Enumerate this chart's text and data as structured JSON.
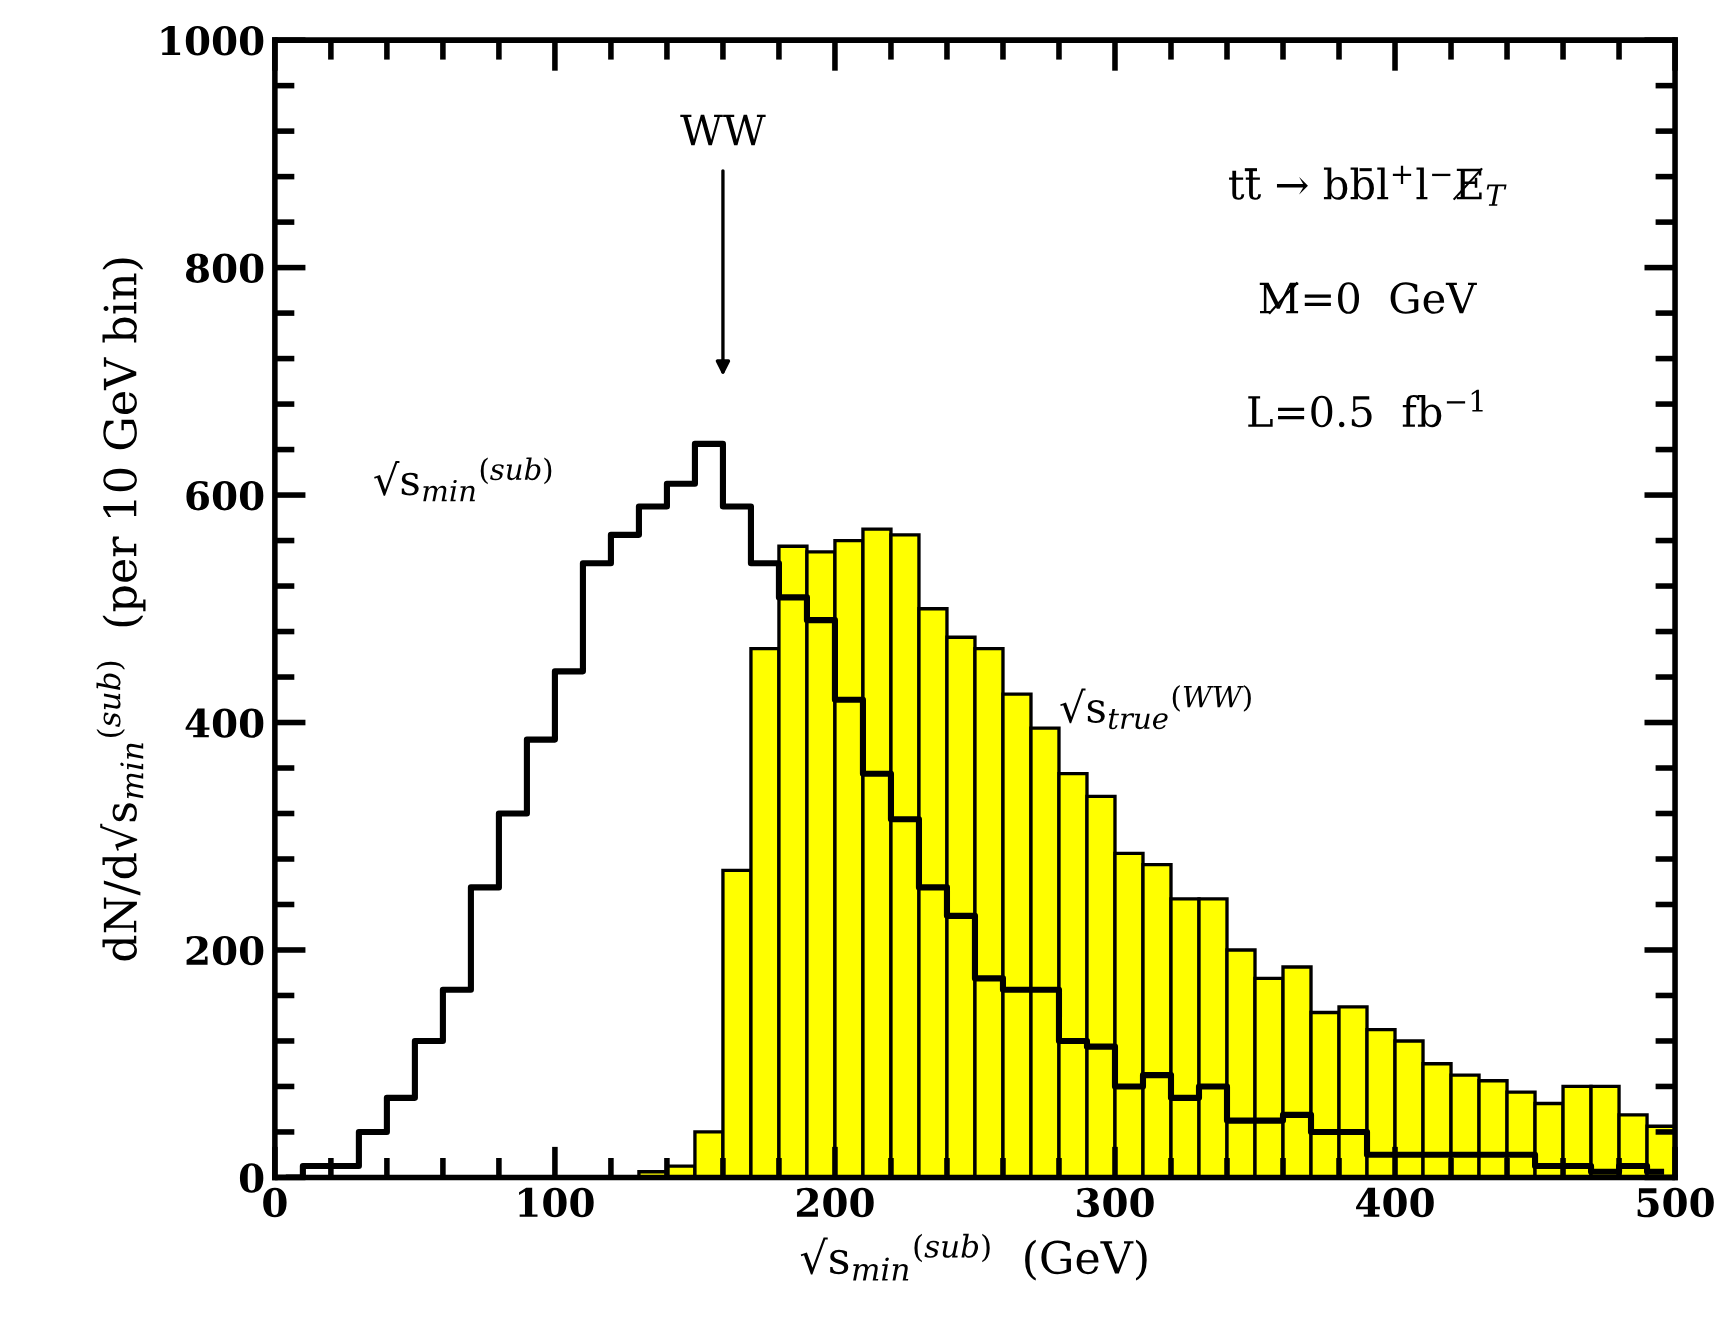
{
  "chart_data": {
    "type": "histogram",
    "xlabel": "√s$_{min}$$^{(sub)}$  (GeV)",
    "ylabel": "dN/d√s$_{min}$$^{(sub)}$  (per 10 GeV bin)",
    "bins": [
      0,
      10,
      20,
      30,
      40,
      50,
      60,
      70,
      80,
      90,
      100,
      110,
      120,
      130,
      140,
      150,
      160,
      170,
      180,
      190,
      200,
      210,
      220,
      230,
      240,
      250,
      260,
      270,
      280,
      290,
      300,
      310,
      320,
      330,
      340,
      350,
      360,
      370,
      380,
      390,
      400,
      410,
      420,
      430,
      440,
      450,
      460,
      470,
      480,
      490,
      500
    ],
    "series": [
      {
        "name": "√s$_{true}$$^{(WW)}$",
        "color": "#ffff00",
        "values": [
          0,
          0,
          0,
          0,
          0,
          0,
          0,
          0,
          0,
          0,
          0,
          0,
          0,
          5,
          10,
          40,
          270,
          465,
          555,
          550,
          560,
          570,
          565,
          500,
          475,
          465,
          425,
          395,
          355,
          335,
          285,
          275,
          245,
          245,
          200,
          175,
          185,
          145,
          150,
          130,
          120,
          100,
          90,
          85,
          75,
          65,
          80,
          80,
          55,
          45
        ]
      },
      {
        "name": "√s$_{min}$$^{(sub)}$",
        "type": "step",
        "color": "#000000",
        "x": [
          5,
          15,
          25,
          35,
          45,
          55,
          65,
          75,
          85,
          95,
          105,
          115,
          125,
          135,
          145,
          155,
          165,
          175,
          185,
          195,
          205,
          215,
          225,
          235,
          245,
          255,
          265,
          275,
          285,
          295,
          305,
          315,
          325,
          335,
          345,
          355,
          365,
          375,
          385,
          395,
          405,
          415,
          425,
          435,
          445,
          455,
          465,
          475,
          485,
          495
        ],
        "values": [
          0,
          10,
          10,
          40,
          70,
          120,
          165,
          255,
          320,
          385,
          445,
          540,
          565,
          590,
          610,
          645,
          590,
          540,
          510,
          490,
          420,
          355,
          315,
          255,
          230,
          175,
          165,
          165,
          120,
          115,
          80,
          90,
          70,
          80,
          50,
          50,
          55,
          40,
          40,
          20,
          20,
          20,
          20,
          20,
          20,
          10,
          10,
          5,
          10,
          5
        ]
      }
    ],
    "xlim": [
      0,
      500
    ],
    "ylim": [
      0,
      1000
    ],
    "xticks": [
      0,
      {
        "value": 20,
        "label": null
      },
      {
        "value": 40,
        "label": null
      },
      {
        "value": 60,
        "label": null
      },
      {
        "value": 80,
        "label": null
      },
      100,
      {
        "value": 120,
        "label": null
      },
      {
        "value": 140,
        "label": null
      },
      {
        "value": 160,
        "label": null
      },
      {
        "value": 180,
        "label": null
      },
      200,
      {
        "value": 220,
        "label": null
      },
      {
        "value": 240,
        "label": null
      },
      {
        "value": 260,
        "label": null
      },
      {
        "value": 280,
        "label": null
      },
      300,
      {
        "value": 320,
        "label": null
      },
      {
        "value": 340,
        "label": null
      },
      {
        "value": 360,
        "label": null
      },
      {
        "value": 380,
        "label": null
      },
      400,
      {
        "value": 420,
        "label": null
      },
      {
        "value": 440,
        "label": null
      },
      {
        "value": 460,
        "label": null
      },
      {
        "value": 480,
        "label": null
      },
      500
    ],
    "yticks": [
      0,
      {
        "value": 40,
        "label": null
      },
      {
        "value": 80,
        "label": null
      },
      {
        "value": 120,
        "label": null
      },
      {
        "value": 160,
        "label": null
      },
      200,
      {
        "value": 240,
        "label": null
      },
      {
        "value": 280,
        "label": null
      },
      {
        "value": 320,
        "label": null
      },
      {
        "value": 360,
        "label": null
      },
      400,
      {
        "value": 440,
        "label": null
      },
      {
        "value": 480,
        "label": null
      },
      {
        "value": 520,
        "label": null
      },
      {
        "value": 560,
        "label": null
      },
      600,
      {
        "value": 640,
        "label": null
      },
      {
        "value": 680,
        "label": null
      },
      {
        "value": 720,
        "label": null
      },
      {
        "value": 760,
        "label": null
      },
      800,
      {
        "value": 840,
        "label": null
      },
      {
        "value": 880,
        "label": null
      },
      {
        "value": 920,
        "label": null
      },
      {
        "value": 960,
        "label": null
      },
      1000
    ],
    "annotations": [
      "WW",
      "tt̄ → bb̄l$^{+}$l$^{−}$E̸$_{T}$",
      "M̸=0  GeV",
      "L=0.5  fb$^{−1}$"
    ],
    "grid": false
  }
}
